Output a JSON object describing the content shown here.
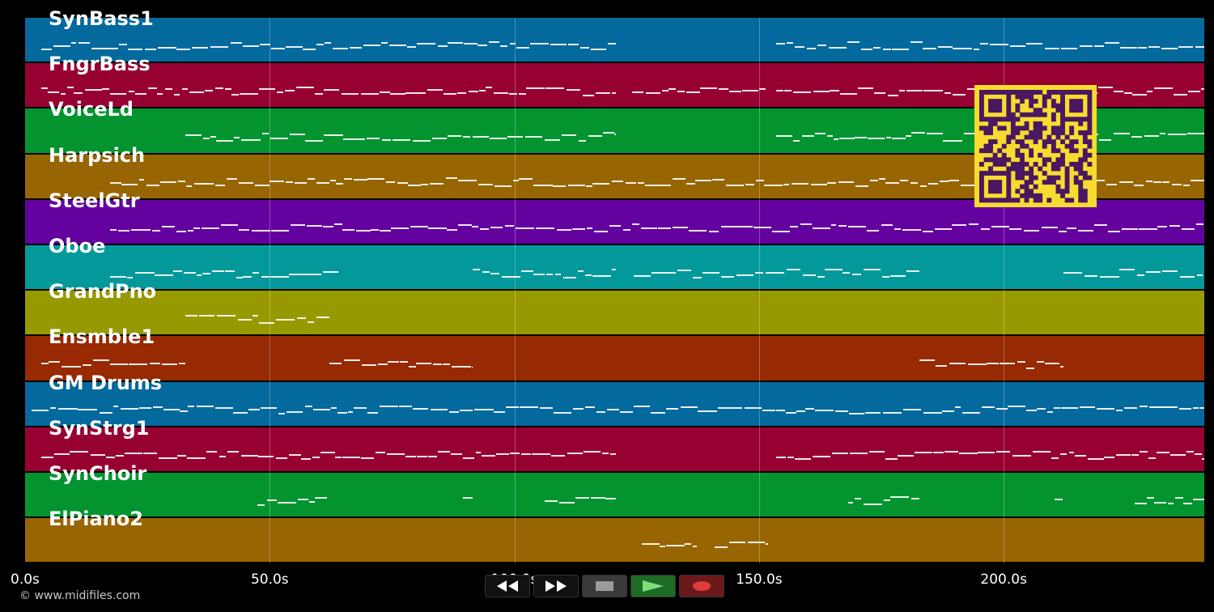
{
  "tracks": [
    {
      "name": "SynBass1",
      "color": "#04699d"
    },
    {
      "name": "FngrBass",
      "color": "#970132"
    },
    {
      "name": "VoiceLd",
      "color": "#039430"
    },
    {
      "name": "Harpsich",
      "color": "#986503"
    },
    {
      "name": "SteelGtr",
      "color": "#6402a0"
    },
    {
      "name": "Oboe",
      "color": "#03999b"
    },
    {
      "name": "GrandPno",
      "color": "#979901"
    },
    {
      "name": "Ensmble1",
      "color": "#972903"
    },
    {
      "name": "GM Drums",
      "color": "#04699d"
    },
    {
      "name": "SynStrg1",
      "color": "#970132"
    },
    {
      "name": "SynChoir",
      "color": "#039430"
    },
    {
      "name": "ElPiano2",
      "color": "#986503"
    }
  ],
  "timeline": {
    "ticks": [
      "0.0s",
      "50.0s",
      "100.0s",
      "150.0s",
      "200.0s"
    ],
    "tick_values": [
      0,
      50,
      100,
      150,
      200
    ],
    "max_seconds": 241
  },
  "transport": {
    "rewind_icon": "rewind-icon",
    "forward_icon": "fast-forward-icon",
    "stop_icon": "stop-icon",
    "play_icon": "play-icon",
    "record_icon": "record-icon"
  },
  "qr_code": {
    "fg": "#4a1760",
    "bg": "#f6dc2f"
  },
  "footer": {
    "copyright": "© www.midifiles.com"
  }
}
